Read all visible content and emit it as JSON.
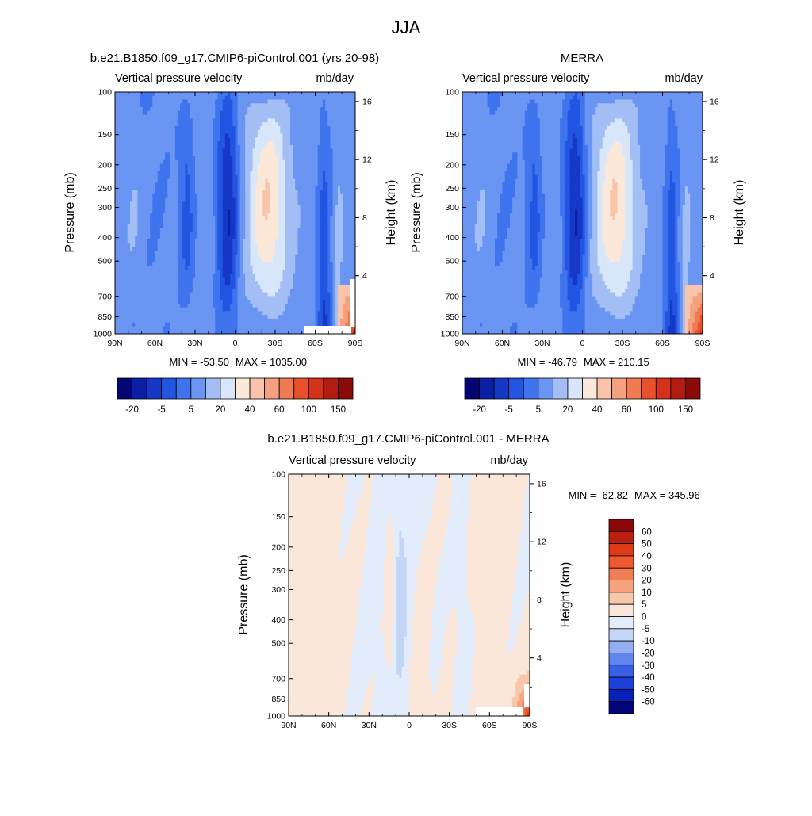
{
  "figure": {
    "title": "JJA"
  },
  "colors": {
    "model_obs_scale": [
      "#050574",
      "#0a1fa3",
      "#1738c6",
      "#2255e1",
      "#3f74ee",
      "#6a95f2",
      "#a3bef4",
      "#d8e6fa",
      "#fbe8d8",
      "#f9c4a9",
      "#f5a07f",
      "#f07a52",
      "#e9502c",
      "#d6311a",
      "#b31c12",
      "#8b0b0b"
    ],
    "diff_scale": [
      "#02057a",
      "#0521b8",
      "#1c3fd8",
      "#3a60e8",
      "#6185ee",
      "#93aef2",
      "#c4d6f6",
      "#e3ecfa",
      "#fbe7d9",
      "#f8c7ab",
      "#f5a47f",
      "#f17d55",
      "#ee5a2d",
      "#de3a16",
      "#b9200f",
      "#8c0808"
    ]
  },
  "chart_data": [
    {
      "type": "heatmap",
      "title": "b.e21.B1850.f09_g17.CMIP6-piControl.001 (yrs 20-98)",
      "subtitle_left": "Vertical pressure velocity",
      "subtitle_right": "mb/day",
      "ylabel": "Pressure (mb)",
      "ylabel_right": "Height (km)",
      "x_ticks": [
        "90N",
        "60N",
        "30N",
        "0",
        "30S",
        "60S",
        "90S"
      ],
      "y_ticks": [
        "100",
        "150",
        "200",
        "250",
        "300",
        "400",
        "500",
        "700",
        "850",
        "1000"
      ],
      "y_right_ticks": [
        "16",
        "12",
        "8",
        "4"
      ],
      "min_label": "MIN = -53.50",
      "max_label": "MAX = 1035.00",
      "colorbar_labels": [
        "-20",
        "-5",
        "5",
        "20",
        "40",
        "60",
        "100",
        "150"
      ]
    },
    {
      "type": "heatmap",
      "title": "MERRA",
      "subtitle_left": "Vertical pressure velocity",
      "subtitle_right": "mb/day",
      "ylabel": "Pressure (mb)",
      "ylabel_right": "Height (km)",
      "x_ticks": [
        "90N",
        "60N",
        "30N",
        "0",
        "30S",
        "60S",
        "90S"
      ],
      "y_ticks": [
        "100",
        "150",
        "200",
        "250",
        "300",
        "400",
        "500",
        "700",
        "850",
        "1000"
      ],
      "y_right_ticks": [
        "16",
        "12",
        "8",
        "4"
      ],
      "min_label": "MIN = -46.79",
      "max_label": "MAX = 210.15",
      "colorbar_labels": [
        "-20",
        "-5",
        "5",
        "20",
        "40",
        "60",
        "100",
        "150"
      ]
    },
    {
      "type": "heatmap",
      "title": "b.e21.B1850.f09_g17.CMIP6-piControl.001 - MERRA",
      "subtitle_left": "Vertical pressure velocity",
      "subtitle_right": "mb/day",
      "ylabel": "Pressure (mb)",
      "ylabel_right": "Height (km)",
      "x_ticks": [
        "90N",
        "60N",
        "30N",
        "0",
        "30S",
        "60S",
        "90S"
      ],
      "y_ticks": [
        "100",
        "150",
        "200",
        "250",
        "300",
        "400",
        "500",
        "700",
        "850",
        "1000"
      ],
      "y_right_ticks": [
        "16",
        "12",
        "8",
        "4"
      ],
      "min_label": "MIN = -62.82",
      "max_label": "MAX = 345.96",
      "colorbar_labels": [
        "60",
        "50",
        "40",
        "30",
        "20",
        "10",
        "5",
        "0",
        "-5",
        "-10",
        "-20",
        "-30",
        "-40",
        "-50",
        "-60"
      ]
    }
  ]
}
